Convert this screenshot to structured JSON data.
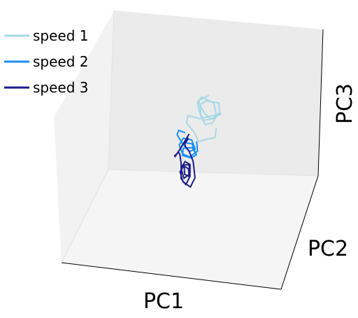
{
  "chart_data": {
    "type": "line",
    "projection": "3d",
    "xlabel": "PC1",
    "ylabel": "PC2",
    "zlabel": "PC3",
    "grid": false,
    "tick_labels": false,
    "legend_position": "top-left",
    "series": [
      {
        "name": "speed 1",
        "color": "#a6d8e6",
        "x": [
          0.16,
          0.2,
          0.28,
          0.36,
          0.33,
          0.24,
          0.17,
          0.22,
          0.31,
          0.38,
          0.42,
          0.35,
          0.26,
          0.19,
          0.18,
          0.27,
          0.37,
          0.41,
          0.34,
          0.25,
          0.46,
          0.48,
          0.56,
          0.58,
          0.6,
          0.52,
          0.47,
          0.4
        ],
        "y": [
          0.5,
          0.46,
          0.48,
          0.52,
          0.55,
          0.57,
          0.55,
          0.5,
          0.49,
          0.51,
          0.54,
          0.56,
          0.56,
          0.53,
          0.47,
          0.47,
          0.5,
          0.53,
          0.56,
          0.58,
          0.52,
          0.47,
          0.48,
          0.52,
          0.55,
          0.58,
          0.6,
          0.59
        ],
        "z": [
          0.58,
          0.57,
          0.6,
          0.59,
          0.53,
          0.52,
          0.54,
          0.58,
          0.61,
          0.58,
          0.55,
          0.52,
          0.51,
          0.55,
          0.58,
          0.6,
          0.6,
          0.57,
          0.54,
          0.52,
          0.61,
          0.64,
          0.64,
          0.6,
          0.55,
          0.52,
          0.5,
          0.52
        ]
      },
      {
        "name": "speed 2",
        "color": "#1a8ff2",
        "x": [
          0.48,
          0.54,
          0.62,
          0.68,
          0.66,
          0.58,
          0.52,
          0.57,
          0.66,
          0.72,
          0.7,
          0.62,
          0.56,
          0.6,
          0.68,
          0.74,
          0.71,
          0.64,
          0.6,
          0.66,
          0.72,
          0.7,
          0.62,
          0.55
        ],
        "y": [
          0.46,
          0.44,
          0.45,
          0.49,
          0.52,
          0.53,
          0.5,
          0.47,
          0.47,
          0.5,
          0.53,
          0.54,
          0.51,
          0.48,
          0.48,
          0.51,
          0.54,
          0.55,
          0.52,
          0.49,
          0.5,
          0.53,
          0.55,
          0.53
        ],
        "z": [
          0.53,
          0.58,
          0.6,
          0.58,
          0.52,
          0.49,
          0.51,
          0.55,
          0.56,
          0.54,
          0.51,
          0.49,
          0.51,
          0.54,
          0.55,
          0.54,
          0.51,
          0.49,
          0.51,
          0.54,
          0.53,
          0.51,
          0.5,
          0.52
        ]
      },
      {
        "name": "speed 3",
        "color": "#1c1c8c",
        "x": [
          0.44,
          0.52,
          0.6,
          0.66,
          0.72,
          0.78,
          0.84,
          0.88,
          0.86,
          0.82,
          0.78,
          0.8,
          0.84,
          0.86,
          0.83,
          0.8,
          0.82,
          0.85,
          0.84,
          0.81,
          0.83,
          0.86,
          0.88,
          0.85,
          0.8,
          0.76,
          0.72,
          0.66,
          0.58,
          0.5
        ],
        "y": [
          0.47,
          0.45,
          0.44,
          0.45,
          0.48,
          0.5,
          0.52,
          0.53,
          0.55,
          0.56,
          0.55,
          0.53,
          0.52,
          0.54,
          0.56,
          0.55,
          0.53,
          0.54,
          0.56,
          0.55,
          0.53,
          0.52,
          0.54,
          0.57,
          0.58,
          0.56,
          0.53,
          0.5,
          0.48,
          0.48
        ],
        "z": [
          0.5,
          0.46,
          0.45,
          0.49,
          0.55,
          0.57,
          0.55,
          0.48,
          0.43,
          0.46,
          0.51,
          0.54,
          0.52,
          0.47,
          0.48,
          0.52,
          0.53,
          0.49,
          0.47,
          0.5,
          0.53,
          0.51,
          0.46,
          0.41,
          0.44,
          0.52,
          0.56,
          0.55,
          0.52,
          0.51
        ]
      }
    ]
  }
}
